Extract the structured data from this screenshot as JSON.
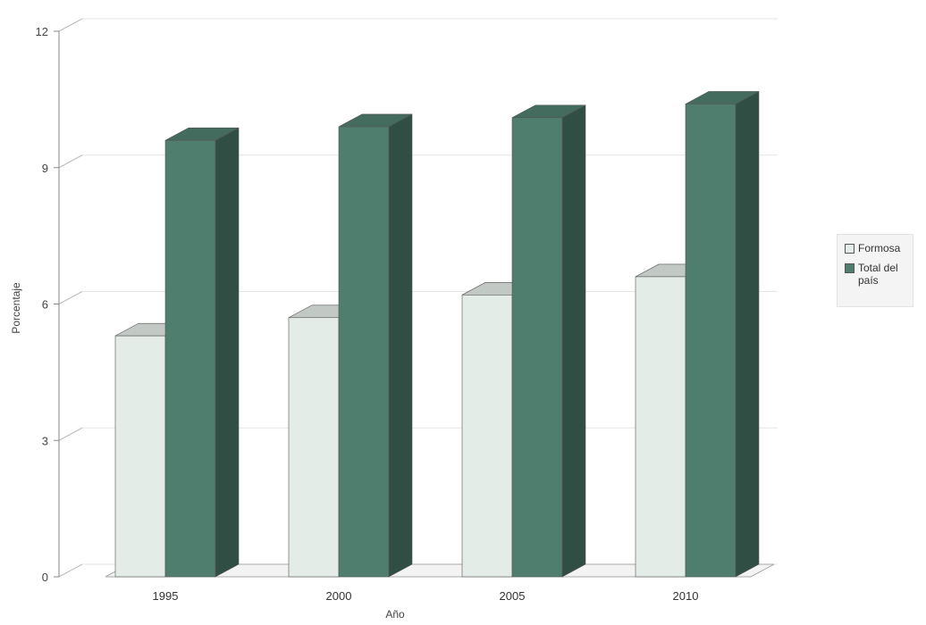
{
  "chart_data": {
    "type": "bar",
    "title": "",
    "xlabel": "Año",
    "ylabel": "Porcentaje",
    "categories": [
      "1995",
      "2000",
      "2005",
      "2010"
    ],
    "series": [
      {
        "name": "Formosa",
        "values": [
          5.3,
          5.7,
          6.2,
          6.6
        ]
      },
      {
        "name": "Total del país",
        "values": [
          9.6,
          9.9,
          10.1,
          10.4
        ]
      }
    ],
    "ylim": [
      0,
      12
    ],
    "yticks": [
      "0",
      "3",
      "6",
      "9",
      "12"
    ],
    "grid": true,
    "legend_position": "right",
    "colors": {
      "Formosa": "#e4ece8",
      "Total del país": "#4f7e6e"
    },
    "three_d": true
  }
}
